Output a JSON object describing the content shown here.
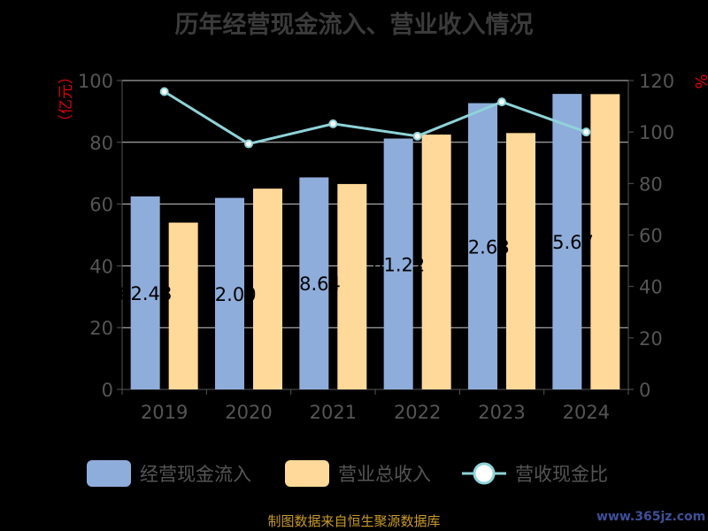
{
  "chart_data": {
    "type": "bar",
    "title": "历年经营现金流入、营业收入情况",
    "categories": [
      "2019",
      "2020",
      "2021",
      "2022",
      "2023",
      "2024"
    ],
    "series": [
      {
        "name": "经营现金流入",
        "type": "bar",
        "axis": "left",
        "values": [
          62.48,
          62.0,
          68.64,
          81.22,
          92.68,
          95.67
        ],
        "labels": [
          "62.48",
          "62.00",
          "68.64",
          "81.22",
          "92.68",
          "95.67"
        ]
      },
      {
        "name": "营业总收入",
        "type": "bar",
        "axis": "left",
        "values": [
          54.0,
          65.0,
          66.5,
          82.5,
          83.0,
          95.6
        ]
      },
      {
        "name": "营收现金比",
        "type": "line",
        "axis": "right",
        "values": [
          115.7,
          95.4,
          103.2,
          98.4,
          111.7,
          100.0
        ]
      }
    ],
    "ylabel_left": "亿元",
    "ylabel_right": "%",
    "ylim_left": [
      0,
      100
    ],
    "ylim_right": [
      0,
      120
    ],
    "yticks_left": [
      0,
      20,
      40,
      60,
      80,
      100
    ],
    "yticks_right": [
      0,
      20,
      40,
      60,
      80,
      100,
      120
    ],
    "grid": true,
    "legend_position": "bottom",
    "colors": {
      "bar1": "#8eaddb",
      "bar2": "#ffd99a",
      "line": "#8fd3d8",
      "axis_text": "#555555",
      "gridline": "#cccccc",
      "unit": "#e00000"
    }
  },
  "source_text": "制图数据来自恒生聚源数据库",
  "watermark_text": "www.365jz.com"
}
